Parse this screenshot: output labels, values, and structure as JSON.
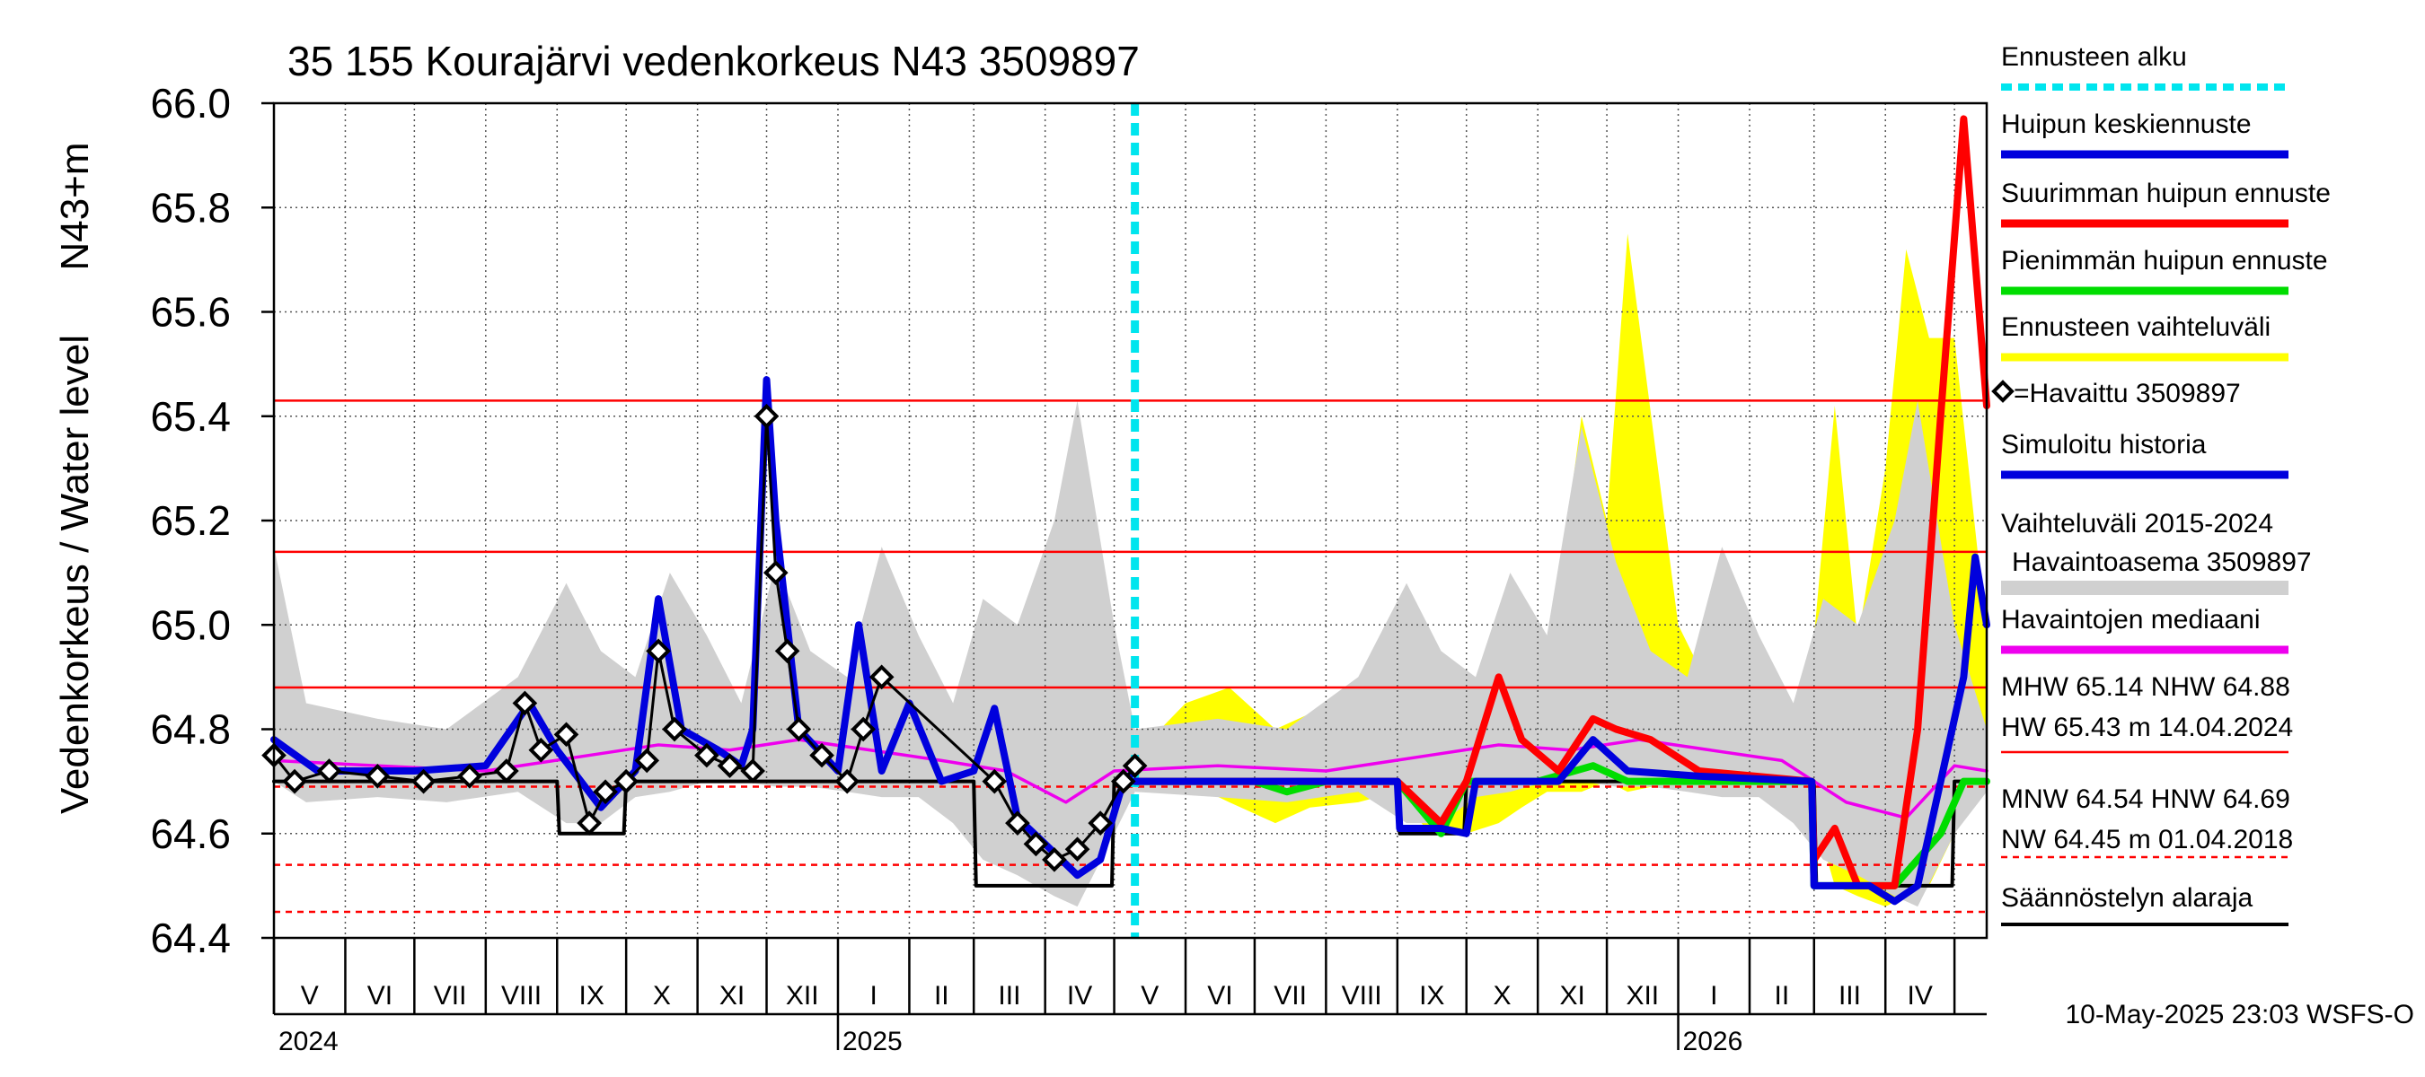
{
  "chart_data": {
    "type": "line",
    "title": "35 155 Kourajärvi vedenkorkeus N43 3509897",
    "ylabel": "Vedenkorkeus / Water level",
    "ylabel_unit": "N43+m",
    "ylim": [
      64.4,
      66.0
    ],
    "yticks": [
      "64.4",
      "64.6",
      "64.8",
      "65.0",
      "65.2",
      "65.4",
      "65.6",
      "65.8",
      "66.0"
    ],
    "month_labels": [
      "V",
      "VI",
      "VII",
      "VIII",
      "IX",
      "X",
      "XI",
      "XII",
      "I",
      "II",
      "III",
      "IV",
      "V",
      "VI",
      "VII",
      "VIII",
      "IX",
      "X",
      "XI",
      "XII",
      "I",
      "II",
      "III",
      "IV"
    ],
    "year_labels": [
      "2024",
      "2025",
      "2026"
    ],
    "x_range": [
      "2024-05-01",
      "2026-05-15"
    ],
    "forecast_start": "2025-05-10",
    "grid": true,
    "legend_position": "right",
    "reference_lines": [
      {
        "name": "HW",
        "value": 65.43,
        "style": "solid"
      },
      {
        "name": "MHW",
        "value": 65.14,
        "style": "solid"
      },
      {
        "name": "NHW",
        "value": 64.88,
        "style": "solid"
      },
      {
        "name": "HNW",
        "value": 64.69,
        "style": "dashed"
      },
      {
        "name": "MNW",
        "value": 64.54,
        "style": "dashed"
      },
      {
        "name": "NW",
        "value": 64.45,
        "style": "dashed"
      }
    ],
    "series": [
      {
        "name": "Havaittu 3509897",
        "color": "#000000",
        "x": [
          "2024-05-01",
          "2024-05-10",
          "2024-05-25",
          "2024-06-15",
          "2024-07-05",
          "2024-07-25",
          "2024-08-10",
          "2024-08-18",
          "2024-08-25",
          "2024-09-05",
          "2024-09-15",
          "2024-09-22",
          "2024-10-01",
          "2024-10-10",
          "2024-10-15",
          "2024-10-22",
          "2024-11-05",
          "2024-11-15",
          "2024-11-25",
          "2024-12-01",
          "2024-12-05",
          "2024-12-10",
          "2024-12-15",
          "2024-12-25",
          "2025-01-05",
          "2025-01-12",
          "2025-01-20",
          "2025-03-10",
          "2025-03-20",
          "2025-03-28",
          "2025-04-05",
          "2025-04-15",
          "2025-04-25",
          "2025-05-05",
          "2025-05-10"
        ],
        "y": [
          64.75,
          64.7,
          64.72,
          64.71,
          64.7,
          64.71,
          64.72,
          64.85,
          64.76,
          64.79,
          64.62,
          64.68,
          64.7,
          64.74,
          64.95,
          64.8,
          64.75,
          64.73,
          64.72,
          65.4,
          65.1,
          64.95,
          64.8,
          64.75,
          64.7,
          64.8,
          64.9,
          64.7,
          64.62,
          64.58,
          64.55,
          64.57,
          64.62,
          64.7,
          64.73
        ]
      },
      {
        "name": "Simuloitu historia",
        "color": "#0000dd",
        "x": [
          "2024-05-01",
          "2024-05-20",
          "2024-07-01",
          "2024-08-01",
          "2024-08-20",
          "2024-09-01",
          "2024-09-20",
          "2024-10-05",
          "2024-10-15",
          "2024-10-25",
          "2024-11-10",
          "2024-11-20",
          "2024-11-25",
          "2024-12-01",
          "2024-12-05",
          "2024-12-15",
          "2025-01-01",
          "2025-01-10",
          "2025-01-20",
          "2025-02-01",
          "2025-02-15",
          "2025-03-01",
          "2025-03-10",
          "2025-03-20",
          "2025-04-01",
          "2025-04-15",
          "2025-04-25",
          "2025-05-05",
          "2025-05-10"
        ],
        "y": [
          64.78,
          64.72,
          64.72,
          64.73,
          64.85,
          64.76,
          64.65,
          64.72,
          65.05,
          64.8,
          64.76,
          64.73,
          64.8,
          65.47,
          65.2,
          64.8,
          64.72,
          65.0,
          64.72,
          64.85,
          64.7,
          64.72,
          64.84,
          64.63,
          64.58,
          64.52,
          64.55,
          64.7,
          64.72
        ]
      },
      {
        "name": "Havaintojen mediaani",
        "color": "#ee00ee",
        "x": [
          "2024-05-01",
          "2024-06-15",
          "2024-08-01",
          "2024-09-15",
          "2024-10-15",
          "2024-11-15",
          "2024-12-15",
          "2025-01-15",
          "2025-02-15",
          "2025-03-15",
          "2025-04-10",
          "2025-05-01",
          "2025-06-15",
          "2025-08-01",
          "2025-09-15",
          "2025-10-15",
          "2025-11-15",
          "2025-12-15",
          "2026-01-15",
          "2026-02-15",
          "2026-03-15",
          "2026-04-10",
          "2026-05-01",
          "2026-05-15"
        ],
        "y": [
          64.74,
          64.73,
          64.72,
          64.75,
          64.77,
          64.76,
          64.78,
          64.76,
          64.74,
          64.72,
          64.66,
          64.72,
          64.73,
          64.72,
          64.75,
          64.77,
          64.76,
          64.78,
          64.76,
          64.74,
          64.66,
          64.63,
          64.73,
          64.72
        ]
      },
      {
        "name": "Huipun keskiennuste",
        "color": "#0000dd",
        "x": [
          "2025-05-10",
          "2025-09-01",
          "2025-09-02",
          "2025-09-20",
          "2025-10-01",
          "2025-10-05",
          "2025-11-10",
          "2025-11-25",
          "2025-12-10",
          "2026-01-10",
          "2026-02-28",
          "2026-03-01",
          "2026-03-25",
          "2026-04-05",
          "2026-04-15",
          "2026-04-25",
          "2026-05-05",
          "2026-05-10",
          "2026-05-15"
        ],
        "y": [
          64.7,
          64.7,
          64.61,
          64.61,
          64.6,
          64.7,
          64.7,
          64.78,
          64.72,
          64.71,
          64.7,
          64.5,
          64.5,
          64.47,
          64.5,
          64.7,
          64.9,
          65.13,
          65.0
        ]
      },
      {
        "name": "Suurimman huipun ennuste",
        "color": "#ff0000",
        "x": [
          "2025-05-10",
          "2025-09-01",
          "2025-09-20",
          "2025-10-01",
          "2025-10-15",
          "2025-10-25",
          "2025-11-10",
          "2025-11-25",
          "2025-12-05",
          "2025-12-20",
          "2026-01-10",
          "2026-02-28",
          "2026-03-01",
          "2026-03-10",
          "2026-03-20",
          "2026-04-05",
          "2026-04-15",
          "2026-04-25",
          "2026-05-05",
          "2026-05-15"
        ],
        "y": [
          64.7,
          64.7,
          64.62,
          64.7,
          64.9,
          64.78,
          64.72,
          64.82,
          64.8,
          64.78,
          64.72,
          64.7,
          64.55,
          64.61,
          64.5,
          64.5,
          64.8,
          65.4,
          65.97,
          65.42
        ]
      },
      {
        "name": "Pienimmän huipun ennuste",
        "color": "#00dd00",
        "x": [
          "2025-05-10",
          "2025-07-01",
          "2025-07-15",
          "2025-08-01",
          "2025-09-01",
          "2025-09-20",
          "2025-10-01",
          "2025-11-01",
          "2025-11-25",
          "2025-12-10",
          "2026-01-10",
          "2026-02-28",
          "2026-03-01",
          "2026-04-05",
          "2026-04-15",
          "2026-04-25",
          "2026-05-05",
          "2026-05-15"
        ],
        "y": [
          64.7,
          64.7,
          64.68,
          64.7,
          64.7,
          64.6,
          64.7,
          64.7,
          64.73,
          64.7,
          64.7,
          64.7,
          64.5,
          64.5,
          64.55,
          64.6,
          64.7,
          64.7
        ]
      },
      {
        "name": "Säännöstelyn alaraja",
        "color": "#000000",
        "x": [
          "2024-05-01",
          "2024-09-01",
          "2024-09-02",
          "2024-09-30",
          "2024-10-01",
          "2025-03-01",
          "2025-03-02",
          "2025-04-30",
          "2025-05-01",
          "2025-09-01",
          "2025-09-02",
          "2025-09-30",
          "2025-10-01",
          "2026-03-01",
          "2026-03-02",
          "2026-04-30",
          "2026-05-01",
          "2026-05-15"
        ],
        "y": [
          64.7,
          64.7,
          64.6,
          64.6,
          64.7,
          64.7,
          64.5,
          64.5,
          64.7,
          64.7,
          64.6,
          64.6,
          64.7,
          64.7,
          64.5,
          64.5,
          64.7,
          64.7
        ]
      }
    ],
    "bands": [
      {
        "name": "Ennusteen vaihteluväli",
        "color": "#ffff00",
        "x": [
          "2025-05-10",
          "2025-06-01",
          "2025-06-20",
          "2025-07-10",
          "2025-07-25",
          "2025-08-15",
          "2025-09-01",
          "2025-09-15",
          "2025-10-01",
          "2025-10-15",
          "2025-10-25",
          "2025-11-05",
          "2025-11-20",
          "2025-12-01",
          "2025-12-10",
          "2026-01-01",
          "2026-01-20",
          "2026-02-10",
          "2026-02-25",
          "2026-03-10",
          "2026-03-20",
          "2026-04-01",
          "2026-04-10",
          "2026-04-20",
          "2026-05-01",
          "2026-05-15"
        ],
        "upper": [
          64.75,
          64.85,
          64.88,
          64.8,
          64.83,
          64.75,
          64.77,
          64.95,
          64.8,
          64.9,
          64.97,
          64.9,
          65.4,
          65.2,
          65.75,
          65.0,
          64.83,
          64.85,
          64.78,
          65.42,
          64.97,
          65.3,
          65.72,
          65.55,
          65.55,
          64.98
        ],
        "lower": [
          64.7,
          64.7,
          64.66,
          64.62,
          64.65,
          64.66,
          64.68,
          64.6,
          64.6,
          64.62,
          64.65,
          64.68,
          64.68,
          64.7,
          64.68,
          64.7,
          64.7,
          64.7,
          64.7,
          64.5,
          64.48,
          64.46,
          64.48,
          64.5,
          64.6,
          64.7
        ]
      },
      {
        "name": "Vaihteluväli 2015-2024 Havaintoasema 3509897",
        "color": "#d0d0d0",
        "x": [
          "2024-05-01",
          "2024-05-15",
          "2024-06-15",
          "2024-07-15",
          "2024-08-15",
          "2024-09-05",
          "2024-09-20",
          "2024-10-05",
          "2024-10-20",
          "2024-11-05",
          "2024-11-20",
          "2024-12-05",
          "2024-12-20",
          "2025-01-05",
          "2025-01-20",
          "2025-02-05",
          "2025-02-20",
          "2025-03-05",
          "2025-03-20",
          "2025-04-05",
          "2025-04-15",
          "2025-05-01",
          "2025-05-10"
        ],
        "upper": [
          65.15,
          64.85,
          64.82,
          64.8,
          64.9,
          65.08,
          64.95,
          64.9,
          65.1,
          64.98,
          64.85,
          65.12,
          64.95,
          64.9,
          65.15,
          64.98,
          64.85,
          65.05,
          65.0,
          65.2,
          65.43,
          65.0,
          64.8
        ],
        "lower": [
          64.7,
          64.66,
          64.67,
          64.66,
          64.68,
          64.62,
          64.62,
          64.67,
          64.68,
          64.7,
          64.7,
          64.69,
          64.69,
          64.68,
          64.67,
          64.67,
          64.62,
          64.55,
          64.52,
          64.48,
          64.46,
          64.6,
          64.68
        ]
      },
      {
        "name": "Vaihteluväli 2015-2024 Havaintoasema 3509897 (forecast period)",
        "color": "#d0d0d0",
        "x": [
          "2025-05-10",
          "2025-06-15",
          "2025-07-15",
          "2025-08-15",
          "2025-09-05",
          "2025-09-20",
          "2025-10-05",
          "2025-10-20",
          "2025-11-05",
          "2025-11-20",
          "2025-12-05",
          "2025-12-20",
          "2026-01-05",
          "2026-01-20",
          "2026-02-05",
          "2026-02-20",
          "2026-03-05",
          "2026-03-20",
          "2026-04-05",
          "2026-04-15",
          "2026-05-01",
          "2026-05-15"
        ],
        "upper": [
          64.8,
          64.82,
          64.8,
          64.9,
          65.08,
          64.95,
          64.9,
          65.1,
          64.98,
          65.38,
          65.12,
          64.95,
          64.9,
          65.15,
          64.98,
          64.85,
          65.05,
          65.0,
          65.2,
          65.43,
          65.0,
          64.8
        ],
        "lower": [
          64.68,
          64.67,
          64.66,
          64.68,
          64.62,
          64.62,
          64.67,
          64.68,
          64.7,
          64.7,
          64.69,
          64.69,
          64.68,
          64.67,
          64.67,
          64.62,
          64.55,
          64.52,
          64.48,
          64.46,
          64.6,
          64.68
        ]
      }
    ]
  },
  "legend": {
    "items": [
      {
        "label": "Ennusteen alku",
        "color": "#00e5ee",
        "style": "dotted"
      },
      {
        "label": "Huipun keskiennuste",
        "color": "#0000dd",
        "style": "solid"
      },
      {
        "label": "Suurimman huipun ennuste",
        "color": "#ff0000",
        "style": "solid"
      },
      {
        "label": "Pienimmän huipun ennuste",
        "color": "#00dd00",
        "style": "solid"
      },
      {
        "label": "Ennusteen vaihteluväli",
        "color": "#ffff00",
        "style": "solid"
      },
      {
        "label": "=Havaittu 3509897",
        "color": "#000000",
        "style": "marker"
      },
      {
        "label": "Simuloitu historia",
        "color": "#0000dd",
        "style": "solid"
      },
      {
        "label": "Vaihteluväli 2015-2024",
        "label2": "Havaintoasema 3509897",
        "color": "#d0d0d0",
        "style": "solid"
      },
      {
        "label": "Havaintojen mediaani",
        "color": "#ee00ee",
        "style": "solid"
      }
    ],
    "stats": {
      "line1": "MHW  65.14 NHW  64.88",
      "line2": "HW  65.43 m 14.04.2024",
      "line3": "MNW  64.54 HNW  64.69",
      "line4": "NW  64.45 m 01.04.2018"
    },
    "regulation": {
      "label": "Säännöstelyn alaraja",
      "color": "#000000"
    }
  },
  "footer": "10-May-2025 23:03 WSFS-O"
}
